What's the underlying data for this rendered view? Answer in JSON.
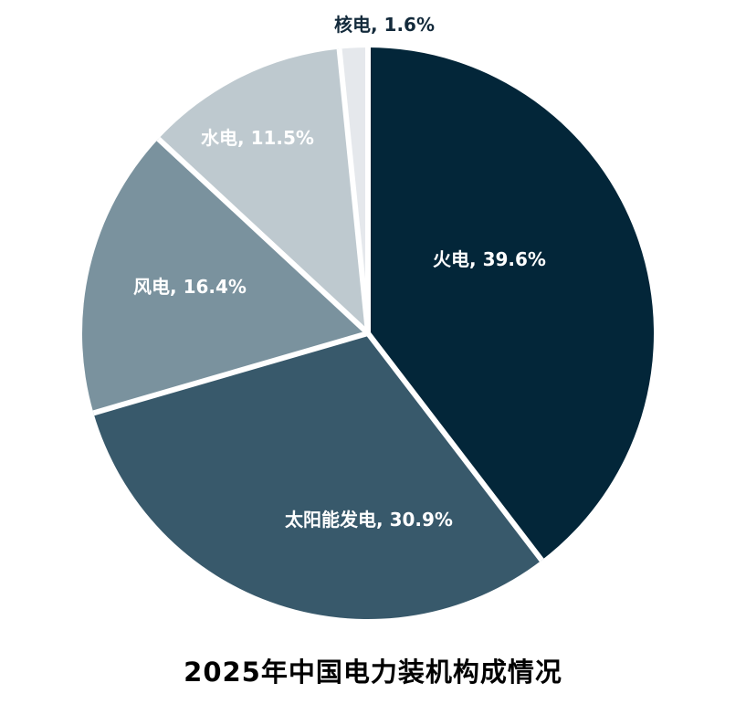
{
  "chart_data": {
    "type": "pie",
    "title": "2025年中国电力装机构成情况",
    "legend_position": "none",
    "grid": false,
    "background_color": "#ffffff",
    "separator_color": "#ffffff",
    "start_angle_deg": 0,
    "direction": "clockwise",
    "slices": [
      {
        "key": "thermal",
        "label": "火电",
        "value": 39.6,
        "display": "火电, 39.6%",
        "color": "#032639",
        "label_color": "#ffffff",
        "label_placement": "inside"
      },
      {
        "key": "solar",
        "label": "太阳能发电",
        "value": 30.9,
        "display": "太阳能发电, 30.9%",
        "color": "#38596b",
        "label_color": "#ffffff",
        "label_placement": "inside"
      },
      {
        "key": "wind",
        "label": "风电",
        "value": 16.4,
        "display": "风电, 16.4%",
        "color": "#7a929e",
        "label_color": "#ffffff",
        "label_placement": "inside"
      },
      {
        "key": "hydro",
        "label": "水电",
        "value": 11.5,
        "display": "水电, 11.5%",
        "color": "#bec9cf",
        "label_color": "#ffffff",
        "label_placement": "inside"
      },
      {
        "key": "nuclear",
        "label": "核电",
        "value": 1.6,
        "display": "核电, 1.6%",
        "color": "#e5e8ec",
        "label_color": "#132a3b",
        "label_placement": "outside"
      }
    ]
  }
}
